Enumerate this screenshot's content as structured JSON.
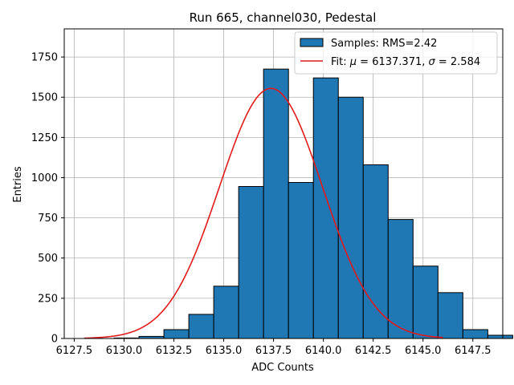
{
  "chart_data": {
    "type": "bar",
    "title": "Run 665, channel030, Pedestal",
    "xlabel": "ADC Counts",
    "ylabel": "Entries",
    "xlim": [
      6127.0,
      6149.0
    ],
    "ylim": [
      0,
      1925
    ],
    "xticks": [
      6127.5,
      6130.0,
      6132.5,
      6135.0,
      6137.5,
      6140.0,
      6142.5,
      6145.0,
      6147.5
    ],
    "xtick_labels": [
      "6127.5",
      "6130.0",
      "6132.5",
      "6135.0",
      "6137.5",
      "6140.0",
      "6142.5",
      "6145.0",
      "6147.5"
    ],
    "yticks": [
      0,
      250,
      500,
      750,
      1000,
      1250,
      1500,
      1750
    ],
    "ytick_labels": [
      "0",
      "250",
      "500",
      "750",
      "1000",
      "1250",
      "1500",
      "1750"
    ],
    "grid": true,
    "legend_position": "top-right",
    "bar_color": "#1f77b4",
    "bar_edge_color": "#000000",
    "fit_color": "#e31a1c",
    "series": [
      {
        "name": "Samples: RMS=2.42",
        "kind": "histogram",
        "bin_width": 1.25,
        "bins": [
          {
            "left": 6129.5,
            "count": 3
          },
          {
            "left": 6130.75,
            "count": 13
          },
          {
            "left": 6132.0,
            "count": 55
          },
          {
            "left": 6133.25,
            "count": 150
          },
          {
            "left": 6134.5,
            "count": 325
          },
          {
            "left": 6135.75,
            "count": 945
          },
          {
            "left": 6137.0,
            "count": 1675
          },
          {
            "left": 6138.25,
            "count": 970
          },
          {
            "left": 6139.5,
            "count": 1620
          },
          {
            "left": 6140.75,
            "count": 1500
          },
          {
            "left": 6142.0,
            "count": 1080
          },
          {
            "left": 6143.25,
            "count": 740
          },
          {
            "left": 6144.5,
            "count": 450
          },
          {
            "left": 6145.75,
            "count": 285
          },
          {
            "left": 6147.0,
            "count": 55
          },
          {
            "left": 6148.25,
            "count": 20
          }
        ]
      },
      {
        "name": "Fit: μ = 6137.371, σ = 2.584",
        "kind": "gaussian_fit",
        "mu": 6137.371,
        "sigma": 2.584,
        "amplitude": 1555,
        "x_range": [
          6128.0,
          6146.0
        ]
      }
    ],
    "legend": [
      {
        "label_prefix": "Samples: RMS=2.42",
        "symbol": "bar"
      },
      {
        "label_prefix": "Fit: ",
        "mu_symbol": "μ",
        "mu_text": " = 6137.371, ",
        "sigma_symbol": "σ",
        "sigma_text": " = 2.584",
        "symbol": "line"
      }
    ]
  }
}
